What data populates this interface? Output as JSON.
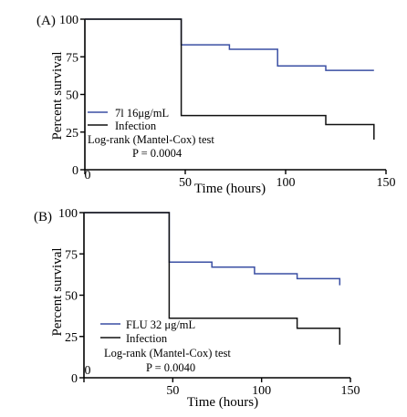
{
  "chart_data": [
    {
      "type": "line",
      "step": true,
      "panel_label": "(A)",
      "xlabel": "Time (hours)",
      "ylabel": "Percent survival",
      "xlim": [
        0,
        150
      ],
      "ylim": [
        0,
        100
      ],
      "xticks": [
        "0",
        "50",
        "100",
        "150"
      ],
      "yticks": [
        "0",
        "25",
        "50",
        "75",
        "100"
      ],
      "grid": false,
      "legend": "bottom-left",
      "series": [
        {
          "name": "7l 16μg/mL",
          "color": "#3a4fa3",
          "points": [
            [
              0,
              100
            ],
            [
              48,
              100
            ],
            [
              48,
              83
            ],
            [
              72,
              83
            ],
            [
              72,
              80
            ],
            [
              96,
              80
            ],
            [
              96,
              69
            ],
            [
              120,
              69
            ],
            [
              120,
              66
            ],
            [
              144,
              66
            ]
          ]
        },
        {
          "name": "Infection",
          "color": "#111111",
          "points": [
            [
              0,
              100
            ],
            [
              48,
              100
            ],
            [
              48,
              36
            ],
            [
              120,
              36
            ],
            [
              120,
              30
            ],
            [
              144,
              30
            ],
            [
              144,
              20
            ]
          ]
        }
      ],
      "annotations": [
        "Log-rank (Mantel-Cox) test",
        "P = 0.0004"
      ]
    },
    {
      "type": "line",
      "step": true,
      "panel_label": "(B)",
      "xlabel": "Time (hours)",
      "ylabel": "Percent survival",
      "xlim": [
        0,
        150
      ],
      "ylim": [
        0,
        100
      ],
      "xticks": [
        "0",
        "50",
        "100",
        "150"
      ],
      "yticks": [
        "0",
        "25",
        "50",
        "75",
        "100"
      ],
      "grid": false,
      "legend": "bottom-left",
      "series": [
        {
          "name": "FLU  32 μg/mL",
          "color": "#3a4fa3",
          "points": [
            [
              0,
              100
            ],
            [
              48,
              100
            ],
            [
              48,
              70
            ],
            [
              72,
              70
            ],
            [
              72,
              67
            ],
            [
              96,
              67
            ],
            [
              96,
              63
            ],
            [
              120,
              63
            ],
            [
              120,
              60
            ],
            [
              144,
              60
            ],
            [
              144,
              56
            ]
          ]
        },
        {
          "name": "Infection",
          "color": "#111111",
          "points": [
            [
              0,
              100
            ],
            [
              48,
              100
            ],
            [
              48,
              36
            ],
            [
              120,
              36
            ],
            [
              120,
              30
            ],
            [
              144,
              30
            ],
            [
              144,
              20
            ]
          ]
        }
      ],
      "annotations": [
        "Log-rank (Mantel-Cox) test",
        "P = 0.0040"
      ]
    }
  ]
}
